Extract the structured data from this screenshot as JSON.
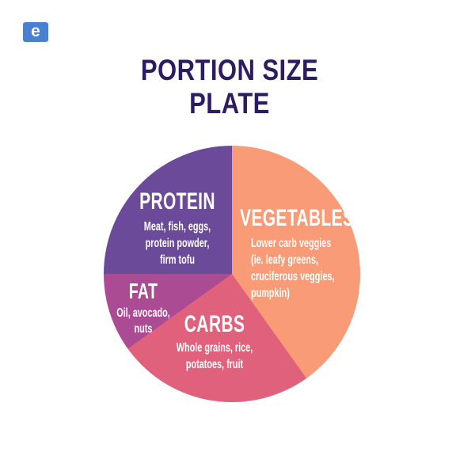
{
  "logo": {
    "letter": "e",
    "bg_color": "#4a80d2"
  },
  "title": {
    "line1": "PORTION SIZE",
    "line2": "PLATE",
    "color": "#2e1c63"
  },
  "chart_data": {
    "type": "pie",
    "title": "PORTION SIZE PLATE",
    "legend_position": "labels-inside-slices",
    "text_color": "#ffffff",
    "slices": [
      {
        "label": "VEGETABLES",
        "description": "Lower carb veggies\n(ie. leafy greens,\ncruciferous veggies,\npumpkin)",
        "percent": 40,
        "start_deg": 0,
        "end_deg": 144.5,
        "color": "#f89b76"
      },
      {
        "label": "CARBS",
        "description": "Whole grains, rice,\npotatoes, fruit",
        "percent": 25,
        "start_deg": 144.5,
        "end_deg": 234.3,
        "color": "#e0617b"
      },
      {
        "label": "FAT",
        "description": "Oil, avocado,\nnuts",
        "percent": 10,
        "start_deg": 234.3,
        "end_deg": 270,
        "color": "#ab4b93"
      },
      {
        "label": "PROTEIN",
        "description": "Meat, fish, eggs,\nprotein powder,\nfirm tofu",
        "percent": 25,
        "start_deg": 270,
        "end_deg": 360,
        "color": "#6b4a9a"
      }
    ]
  }
}
